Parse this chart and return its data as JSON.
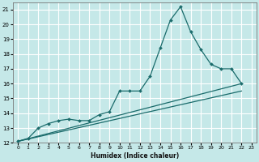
{
  "xlabel": "Humidex (Indice chaleur)",
  "bg_color": "#c5e8e8",
  "grid_color": "#ffffff",
  "line_color": "#1a6b6b",
  "xlim": [
    -0.5,
    23.5
  ],
  "ylim": [
    12,
    21.5
  ],
  "yticks": [
    12,
    13,
    14,
    15,
    16,
    17,
    18,
    19,
    20,
    21
  ],
  "xticks": [
    0,
    1,
    2,
    3,
    4,
    5,
    6,
    7,
    8,
    9,
    10,
    11,
    12,
    13,
    14,
    15,
    16,
    17,
    18,
    19,
    20,
    21,
    22,
    23
  ],
  "series_main": {
    "x": [
      0,
      1,
      2,
      3,
      4,
      5,
      6,
      7,
      8,
      9,
      10,
      11,
      12,
      13,
      14,
      15,
      16,
      17,
      18,
      19,
      20,
      21,
      22
    ],
    "y": [
      12.1,
      12.3,
      13.0,
      13.3,
      13.5,
      13.6,
      13.5,
      13.5,
      13.9,
      14.1,
      15.5,
      15.5,
      15.5,
      16.5,
      18.4,
      20.3,
      21.2,
      19.5,
      18.3,
      17.3,
      17.0,
      17.0,
      16.0
    ]
  },
  "series_line1": {
    "x": [
      0,
      22
    ],
    "y": [
      12.1,
      16.0
    ]
  },
  "series_line2": {
    "x": [
      0,
      22
    ],
    "y": [
      12.1,
      15.5
    ]
  }
}
